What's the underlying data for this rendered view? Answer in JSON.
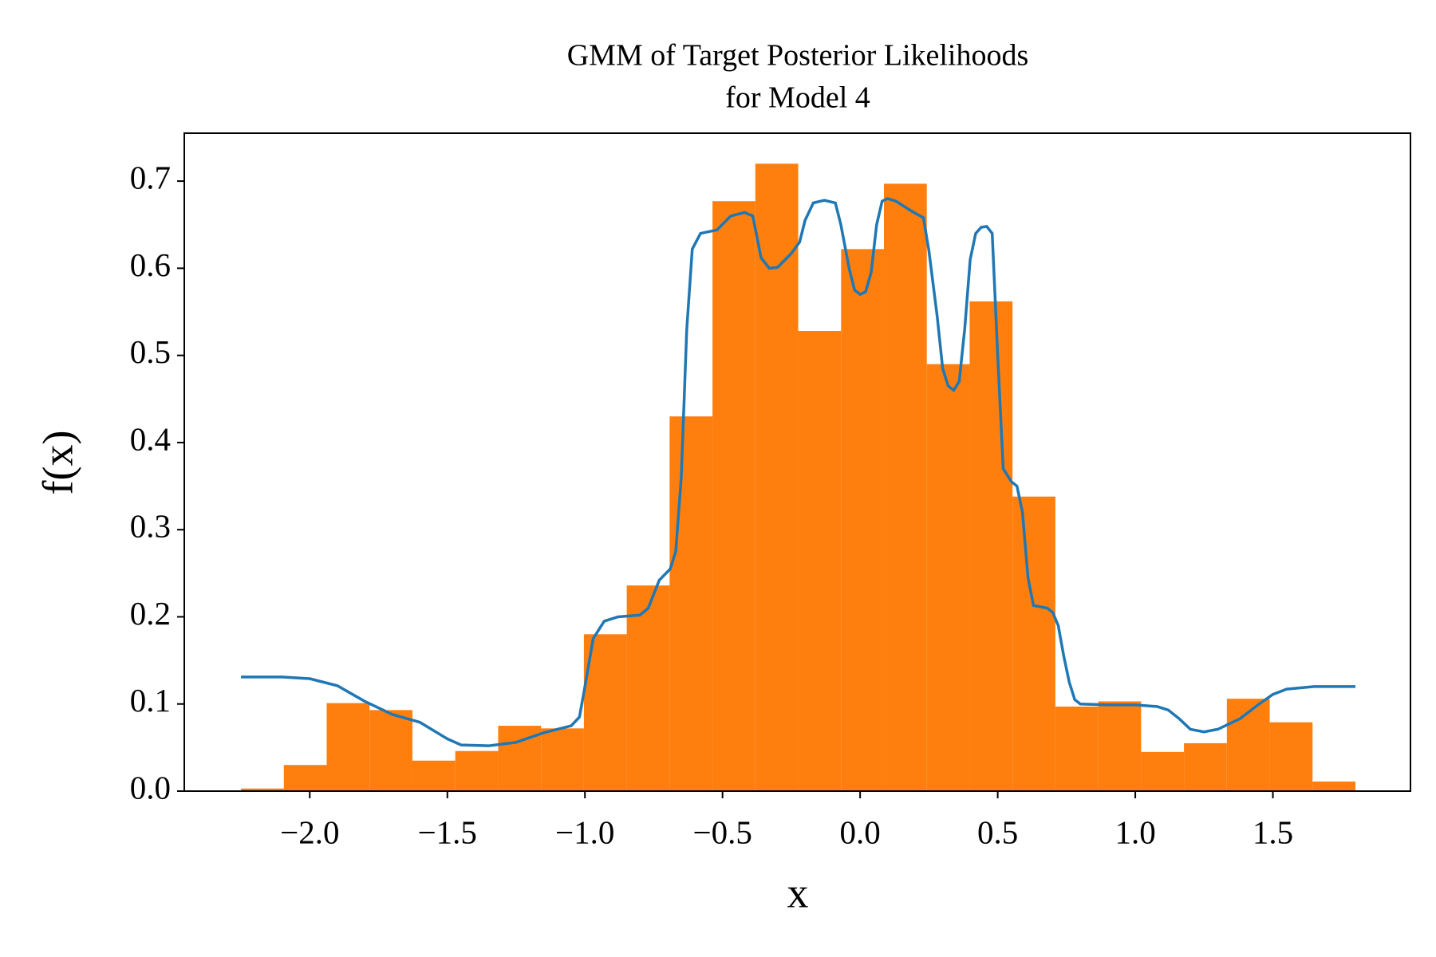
{
  "chart_data": {
    "type": "histogram",
    "title": [
      "GMM of Target Posterior Likelihoods",
      "for Model 4"
    ],
    "x_label": "x",
    "y_label": "f(x)",
    "bins": [
      -2.25,
      -2.0942,
      -1.9385,
      -1.7827,
      -1.6269,
      -1.4712,
      -1.3154,
      -1.1596,
      -1.0038,
      -0.8481,
      -0.6923,
      -0.5365,
      -0.3808,
      -0.225,
      -0.0692,
      0.0865,
      0.2423,
      0.3981,
      0.5538,
      0.7096,
      0.8654,
      1.0212,
      1.1769,
      1.3327,
      1.4885,
      1.6442,
      1.8
    ],
    "values": [
      0.003,
      0.03,
      0.101,
      0.093,
      0.035,
      0.046,
      0.075,
      0.072,
      0.18,
      0.236,
      0.43,
      0.677,
      0.72,
      0.528,
      0.622,
      0.697,
      0.49,
      0.562,
      0.338,
      0.097,
      0.103,
      0.045,
      0.055,
      0.106,
      0.079,
      0.011
    ],
    "color": "#ff7f0e",
    "line": {
      "color": "#1f77b4",
      "x": [
        -2.25,
        -2.1,
        -2.0,
        -1.9,
        -1.8,
        -1.7,
        -1.6,
        -1.5,
        -1.45,
        -1.35,
        -1.25,
        -1.15,
        -1.05,
        -1.02,
        -1.0,
        -0.97,
        -0.93,
        -0.88,
        -0.8,
        -0.77,
        -0.73,
        -0.69,
        -0.67,
        -0.65,
        -0.63,
        -0.61,
        -0.58,
        -0.52,
        -0.47,
        -0.42,
        -0.39,
        -0.36,
        -0.33,
        -0.3,
        -0.25,
        -0.22,
        -0.2,
        -0.17,
        -0.13,
        -0.09,
        -0.07,
        -0.04,
        -0.02,
        0.0,
        0.02,
        0.04,
        0.06,
        0.08,
        0.1,
        0.13,
        0.19,
        0.23,
        0.25,
        0.28,
        0.3,
        0.32,
        0.34,
        0.36,
        0.38,
        0.4,
        0.42,
        0.44,
        0.46,
        0.48,
        0.5,
        0.52,
        0.55,
        0.57,
        0.59,
        0.61,
        0.63,
        0.68,
        0.7,
        0.72,
        0.74,
        0.76,
        0.78,
        0.8,
        0.9,
        1.0,
        1.08,
        1.12,
        1.16,
        1.2,
        1.25,
        1.3,
        1.38,
        1.45,
        1.5,
        1.55,
        1.65,
        1.8
      ],
      "y": [
        0.131,
        0.131,
        0.129,
        0.121,
        0.103,
        0.088,
        0.079,
        0.06,
        0.053,
        0.052,
        0.056,
        0.067,
        0.075,
        0.085,
        0.12,
        0.175,
        0.195,
        0.2,
        0.202,
        0.21,
        0.242,
        0.255,
        0.275,
        0.36,
        0.53,
        0.622,
        0.64,
        0.644,
        0.66,
        0.664,
        0.66,
        0.612,
        0.6,
        0.601,
        0.617,
        0.63,
        0.655,
        0.675,
        0.678,
        0.675,
        0.65,
        0.6,
        0.575,
        0.57,
        0.573,
        0.595,
        0.65,
        0.677,
        0.68,
        0.677,
        0.665,
        0.658,
        0.62,
        0.545,
        0.485,
        0.465,
        0.46,
        0.47,
        0.53,
        0.61,
        0.64,
        0.647,
        0.648,
        0.64,
        0.5,
        0.37,
        0.355,
        0.35,
        0.32,
        0.245,
        0.213,
        0.21,
        0.205,
        0.19,
        0.155,
        0.125,
        0.105,
        0.1,
        0.099,
        0.099,
        0.097,
        0.093,
        0.083,
        0.071,
        0.068,
        0.071,
        0.083,
        0.1,
        0.111,
        0.117,
        0.12,
        0.12
      ]
    },
    "xlim": [
      -2.456,
      2.0
    ],
    "ylim": [
      0,
      0.755
    ],
    "xticks": [
      {
        "value": -2.0,
        "label": "−2.0"
      },
      {
        "value": -1.5,
        "label": "−1.5"
      },
      {
        "value": -1.0,
        "label": "−1.0"
      },
      {
        "value": -0.5,
        "label": "−0.5"
      },
      {
        "value": 0.0,
        "label": "0.0"
      },
      0.5,
      {
        "value": 1.0,
        "label": "1.0"
      },
      1.5
    ],
    "yticks": [
      {
        "value": 0.0,
        "label": "0.0"
      },
      0.1,
      0.2,
      0.3,
      0.4,
      0.5,
      0.6,
      0.7
    ]
  }
}
